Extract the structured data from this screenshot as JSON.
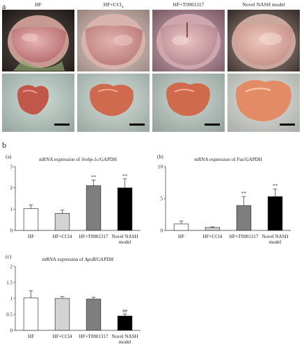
{
  "panel_a": {
    "letter": "a",
    "columns": [
      {
        "label": "HF"
      },
      {
        "label": "HF+CCl",
        "sub": "4"
      },
      {
        "label": "HF+T0901317"
      },
      {
        "label": "Novel NASH model"
      }
    ]
  },
  "panel_b": {
    "letter": "b"
  },
  "chart_data": [
    {
      "type": "bar",
      "panel": "(a)",
      "title_parts": [
        "mRNA expression of ",
        "Srebp-1c",
        "/GAPDH"
      ],
      "categories": [
        "HF",
        "HF+CCl4",
        "HF+T0901317",
        "Novel NASH\nmodel"
      ],
      "values": [
        1.02,
        0.8,
        2.1,
        2.0
      ],
      "errors": [
        0.18,
        0.15,
        0.27,
        0.42
      ],
      "annotations": [
        "",
        "",
        "**",
        "**"
      ],
      "colors": [
        "#ffffff",
        "#d3d3d3",
        "#7e7e7e",
        "#000000"
      ],
      "ylim": [
        0,
        3
      ],
      "yticks": [
        0,
        1,
        2,
        3
      ]
    },
    {
      "type": "bar",
      "panel": "(b)",
      "title_parts": [
        "mRNA expression of ",
        "Fas",
        "/GAPDH"
      ],
      "categories": [
        "HF",
        "HF+CCl4",
        "HF+T0901317",
        "Novel NASH\nmodel"
      ],
      "values": [
        1.0,
        0.45,
        3.9,
        5.3
      ],
      "errors": [
        0.45,
        0.1,
        1.4,
        1.2
      ],
      "annotations": [
        "",
        "",
        "**",
        "**"
      ],
      "colors": [
        "#ffffff",
        "#d3d3d3",
        "#7e7e7e",
        "#000000"
      ],
      "ylim": [
        0,
        10
      ],
      "yticks": [
        0,
        5,
        10
      ]
    },
    {
      "type": "bar",
      "panel": "(c)",
      "title_parts": [
        "mRNA expression of ",
        "ApoB",
        "/GAPDH"
      ],
      "categories": [
        "HF",
        "HF+CCl4",
        "HF+T0901317",
        "Novel NASH\nmodel"
      ],
      "values": [
        1.02,
        1.0,
        0.98,
        0.45
      ],
      "errors": [
        0.22,
        0.06,
        0.06,
        0.06
      ],
      "annotations": [
        "",
        "",
        "",
        "##"
      ],
      "colors": [
        "#ffffff",
        "#d3d3d3",
        "#7e7e7e",
        "#000000"
      ],
      "ylim": [
        0,
        2
      ],
      "yticks": [
        0,
        0.5,
        1,
        1.5,
        2
      ]
    }
  ]
}
